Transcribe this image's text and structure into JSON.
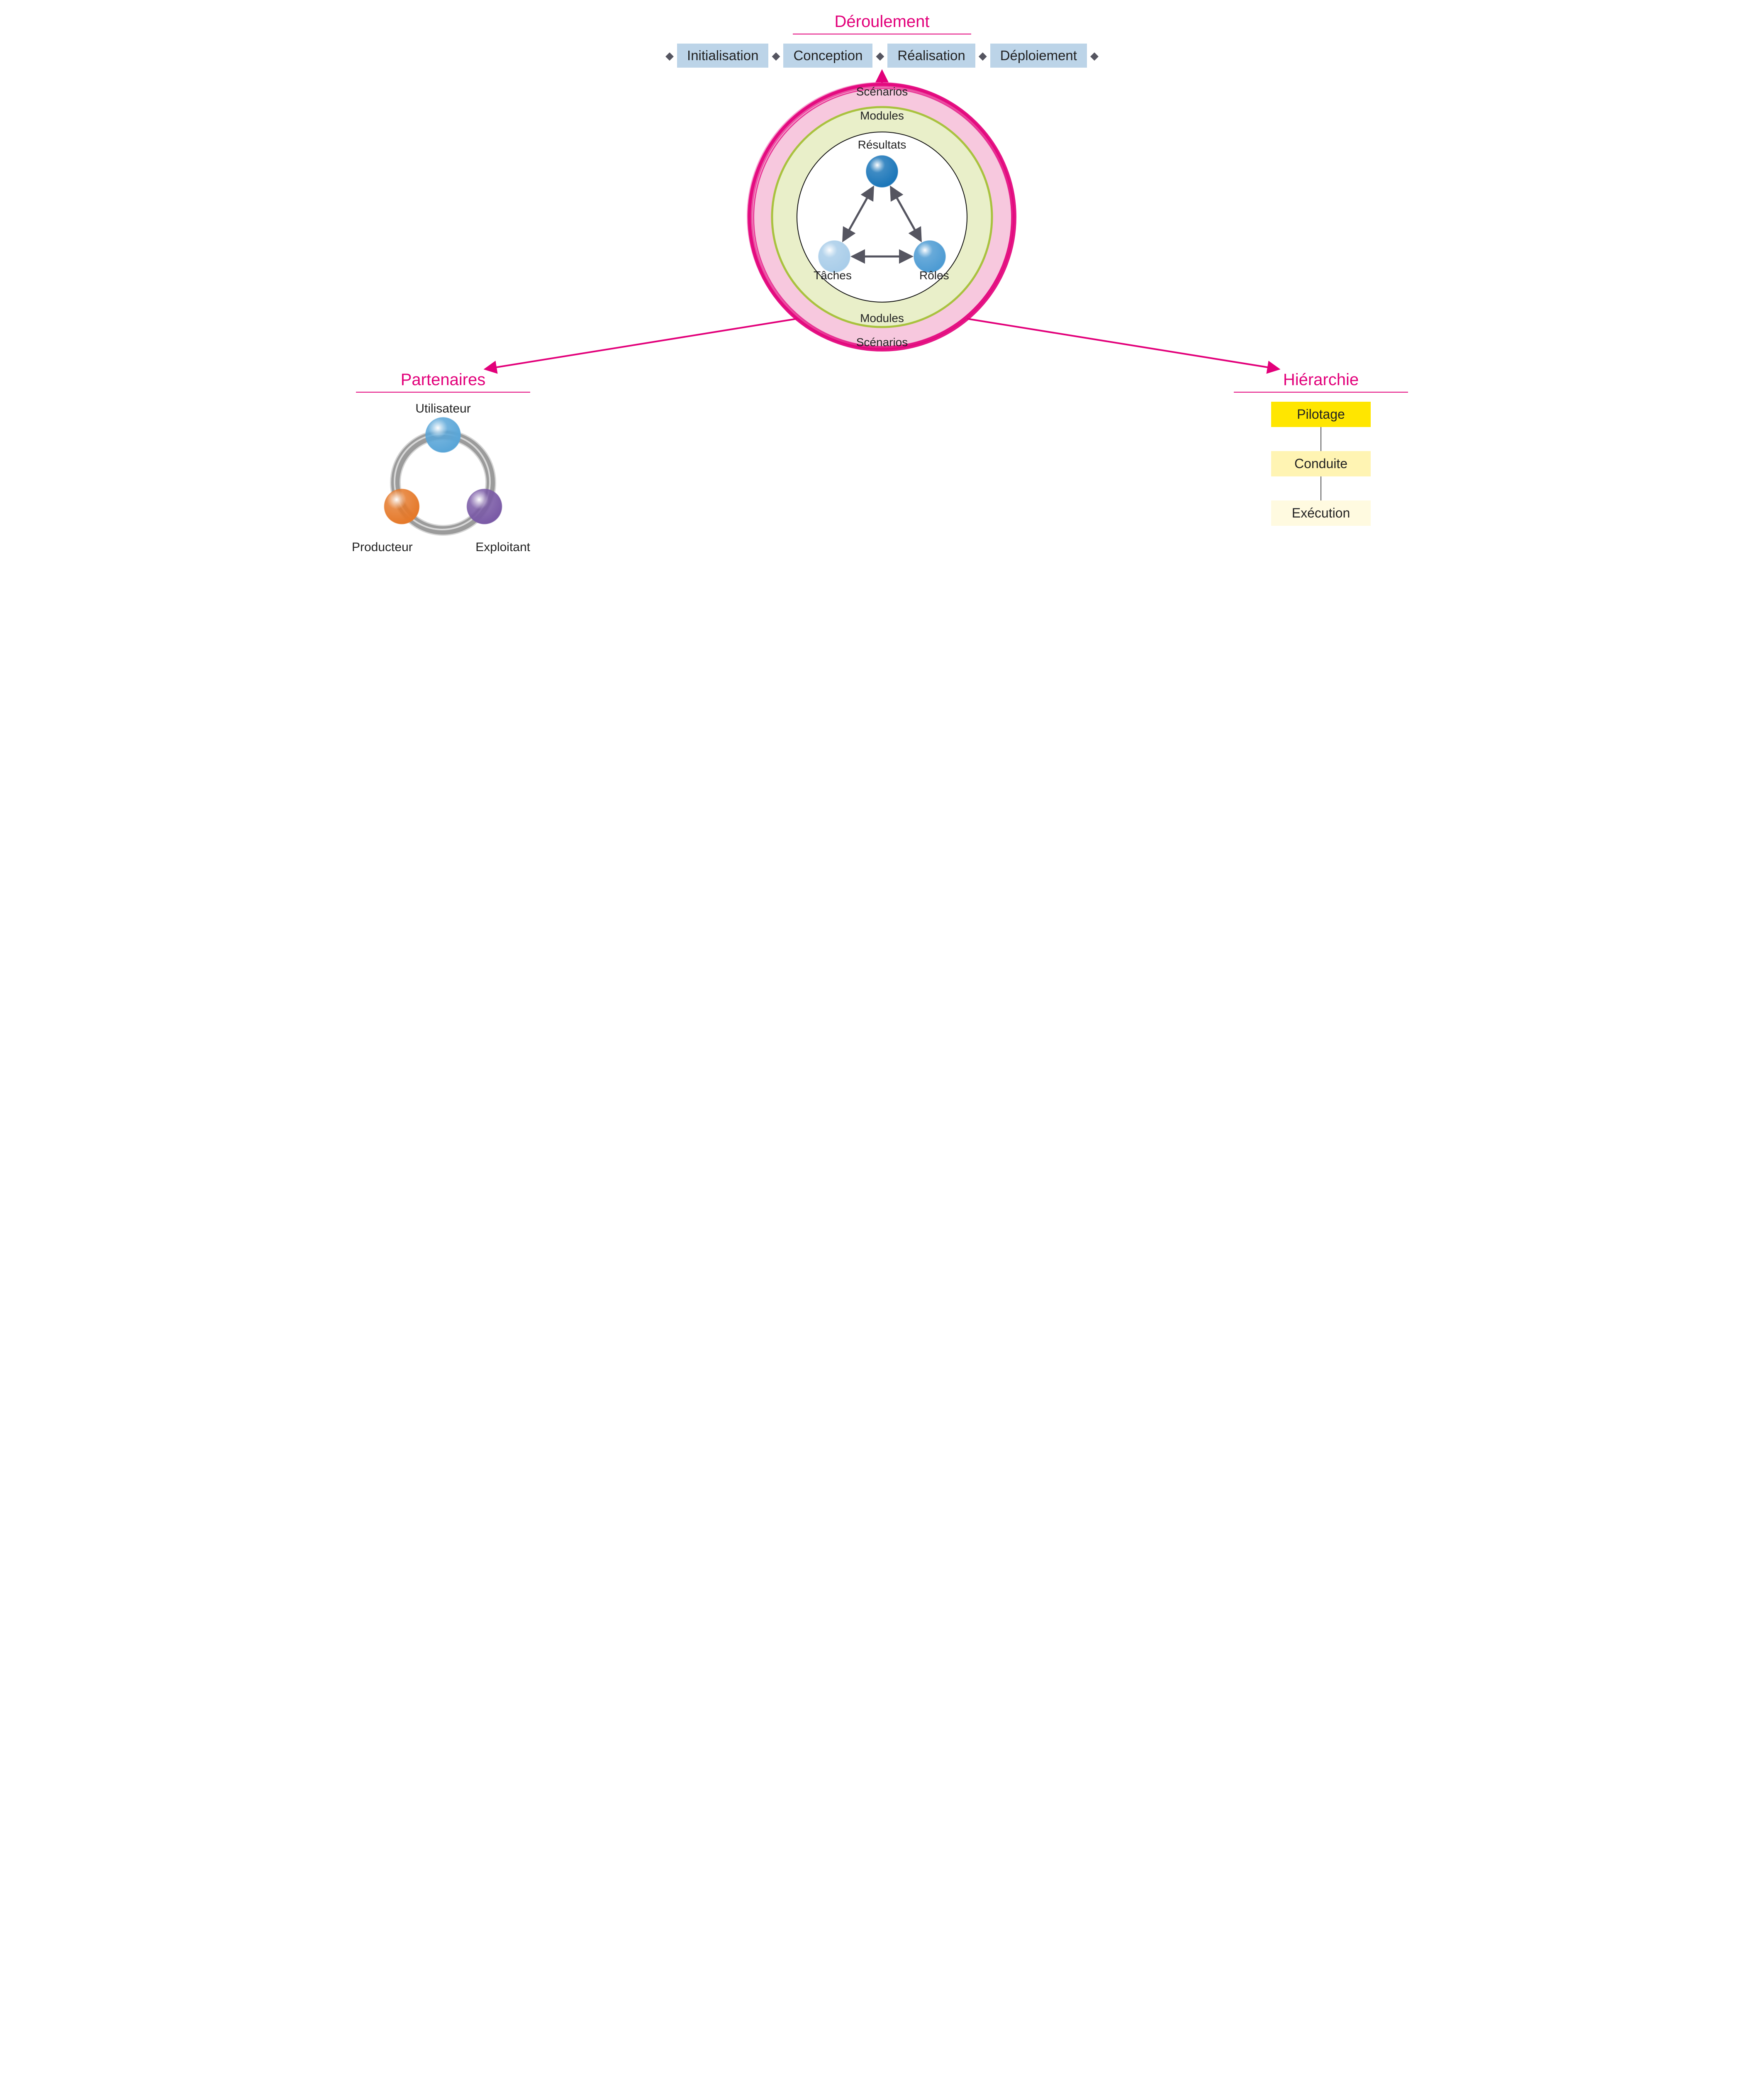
{
  "colors": {
    "accent": "#e2007a",
    "phase_bg": "#bcd4e8",
    "phase_text": "#222222",
    "diamond": "#555560",
    "ring_outer_fill": "#f7c8de",
    "ring_outer_stroke": "#e2007a",
    "ring_middle_fill": "#e9efc9",
    "ring_middle_stroke": "#a9c23f",
    "ring_inner_stroke": "#111111",
    "arrow_gray": "#555560",
    "tri_dark": "#1b76b9",
    "tri_med": "#4d9bd3",
    "tri_light": "#a9cde9",
    "partner_ring": "#9b9b9b",
    "partner_user": "#5aa6d8",
    "partner_producer": "#e5792a",
    "partner_operator": "#7a5aa6",
    "hier_conn": "#555555"
  },
  "deroulement": {
    "title": "Déroulement",
    "rule_width": 430,
    "phases": [
      "Initialisation",
      "Conception",
      "Réalisation",
      "Déploiement"
    ]
  },
  "rings": {
    "outer_label": "Scénarios",
    "middle_label": "Modules",
    "outer_r": 320,
    "middle_r": 265,
    "inner_r": 205,
    "ring_outer_stroke_w": 8,
    "ring_middle_stroke_w": 5,
    "ring_inner_stroke_w": 2
  },
  "triangle": {
    "top": {
      "label": "Résultats",
      "color_key": "tri_dark"
    },
    "left": {
      "label": "Tâches",
      "color_key": "tri_light"
    },
    "right": {
      "label": "Rôles",
      "color_key": "tri_med"
    },
    "node_r": 38
  },
  "partenaires": {
    "title": "Partenaires",
    "rule_width": 420,
    "ring_r": 115,
    "ring_stroke_w": 20,
    "node_r": 42,
    "user": {
      "label": "Utilisateur",
      "color_key": "partner_user"
    },
    "producer": {
      "label": "Producteur",
      "color_key": "partner_producer"
    },
    "operator": {
      "label": "Exploitant",
      "color_key": "partner_operator"
    }
  },
  "hierarchie": {
    "title": "Hiérarchie",
    "rule_width": 420,
    "levels": [
      {
        "label": "Pilotage",
        "bg": "#ffe600"
      },
      {
        "label": "Conduite",
        "bg": "#fff4b3"
      },
      {
        "label": "Exécution",
        "bg": "#fffae0"
      }
    ],
    "conn_h": 58
  }
}
